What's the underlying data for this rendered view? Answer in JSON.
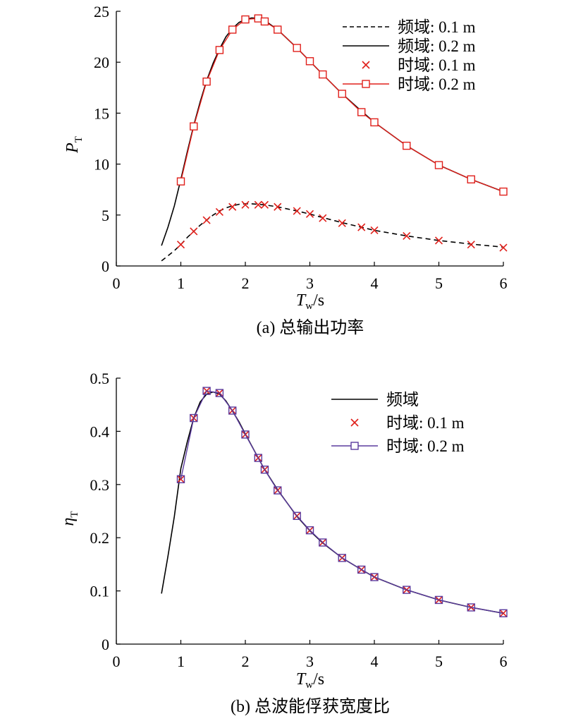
{
  "chart_data": [
    {
      "type": "line",
      "caption": "(a) 总输出功率",
      "ylabel": "P",
      "ylabel_sub": "T",
      "xlabel": "T",
      "xlabel_sub": "w",
      "xlabel_unit": "/s",
      "xlim": [
        0,
        6
      ],
      "ylim": [
        0,
        25
      ],
      "xticks": [
        0,
        1,
        2,
        3,
        4,
        5,
        6
      ],
      "yticks": [
        0,
        5,
        10,
        15,
        20,
        25
      ],
      "grid": false,
      "legend_position": "top-right",
      "colors": {
        "black": "#000000",
        "red": "#e0201b"
      },
      "series": [
        {
          "name": "频域: 0.1 m",
          "style": "dashed-line",
          "color": "#000000",
          "x": [
            0.7,
            0.8,
            0.9,
            1.0,
            1.1,
            1.2,
            1.3,
            1.4,
            1.5,
            1.6,
            1.7,
            1.8,
            1.9,
            2.0,
            2.1,
            2.2,
            2.3,
            2.5,
            2.8,
            3.0,
            3.2,
            3.5,
            3.8,
            4.0,
            4.5,
            5.0,
            5.5,
            6.0
          ],
          "y": [
            0.5,
            1.0,
            1.5,
            2.1,
            2.8,
            3.4,
            4.0,
            4.5,
            5.0,
            5.4,
            5.7,
            5.9,
            6.05,
            6.1,
            6.1,
            6.05,
            6.0,
            5.8,
            5.4,
            5.1,
            4.75,
            4.25,
            3.8,
            3.5,
            2.95,
            2.5,
            2.15,
            1.85
          ]
        },
        {
          "name": "频域: 0.2 m",
          "style": "solid-line",
          "color": "#000000",
          "x": [
            0.7,
            0.8,
            0.9,
            1.0,
            1.1,
            1.2,
            1.3,
            1.4,
            1.5,
            1.6,
            1.7,
            1.8,
            1.9,
            2.0,
            2.1,
            2.2,
            2.3,
            2.5,
            2.8,
            3.0,
            3.2,
            3.5,
            3.8,
            4.0,
            4.5,
            5.0,
            5.5,
            6.0
          ],
          "y": [
            2.0,
            3.8,
            5.9,
            8.5,
            11.2,
            13.8,
            16.1,
            18.2,
            19.9,
            21.3,
            22.5,
            23.3,
            23.9,
            24.2,
            24.35,
            24.3,
            24.1,
            23.2,
            21.4,
            20.1,
            18.8,
            16.9,
            15.2,
            14.1,
            11.8,
            9.9,
            8.5,
            7.3
          ]
        },
        {
          "name": "时域: 0.1 m",
          "style": "x-markers",
          "color": "#e0201b",
          "x": [
            1.0,
            1.2,
            1.4,
            1.6,
            1.8,
            2.0,
            2.2,
            2.3,
            2.5,
            2.8,
            3.0,
            3.2,
            3.5,
            3.8,
            4.0,
            4.5,
            5.0,
            5.5,
            6.0
          ],
          "y": [
            2.1,
            3.4,
            4.5,
            5.3,
            5.8,
            6.0,
            6.0,
            6.0,
            5.8,
            5.4,
            5.1,
            4.7,
            4.2,
            3.8,
            3.5,
            2.95,
            2.5,
            2.1,
            1.8
          ]
        },
        {
          "name": "时域: 0.2 m",
          "style": "line-square-markers",
          "color": "#e0201b",
          "x": [
            1.0,
            1.2,
            1.4,
            1.6,
            1.8,
            2.0,
            2.2,
            2.3,
            2.5,
            2.8,
            3.0,
            3.2,
            3.5,
            3.8,
            4.0,
            4.5,
            5.0,
            5.5,
            6.0
          ],
          "y": [
            8.3,
            13.7,
            18.1,
            21.2,
            23.2,
            24.2,
            24.3,
            24.0,
            23.2,
            21.4,
            20.1,
            18.8,
            16.9,
            15.1,
            14.1,
            11.8,
            9.9,
            8.5,
            7.3
          ]
        }
      ]
    },
    {
      "type": "line",
      "caption": "(b) 总波能俘获宽度比",
      "ylabel": "η",
      "ylabel_sub": "T",
      "xlabel": "T",
      "xlabel_sub": "w",
      "xlabel_unit": "/s",
      "xlim": [
        0,
        6
      ],
      "ylim": [
        0,
        0.5
      ],
      "xticks": [
        0,
        1,
        2,
        3,
        4,
        5,
        6
      ],
      "yticks": [
        0,
        0.1,
        0.2,
        0.3,
        0.4,
        0.5
      ],
      "grid": false,
      "legend_position": "top-right",
      "colors": {
        "black": "#000000",
        "red": "#e0201b",
        "purple": "#5b3b9e"
      },
      "series": [
        {
          "name": "频域",
          "style": "solid-line",
          "color": "#000000",
          "x": [
            0.7,
            0.8,
            0.9,
            1.0,
            1.1,
            1.2,
            1.3,
            1.4,
            1.5,
            1.6,
            1.7,
            1.8,
            1.9,
            2.0,
            2.2,
            2.3,
            2.5,
            2.8,
            3.0,
            3.2,
            3.5,
            3.8,
            4.0,
            4.5,
            5.0,
            5.5,
            6.0
          ],
          "y": [
            0.095,
            0.165,
            0.24,
            0.33,
            0.38,
            0.425,
            0.455,
            0.47,
            0.474,
            0.47,
            0.457,
            0.438,
            0.418,
            0.395,
            0.35,
            0.328,
            0.29,
            0.24,
            0.213,
            0.19,
            0.162,
            0.14,
            0.126,
            0.102,
            0.083,
            0.069,
            0.058
          ]
        },
        {
          "name": "时域: 0.1 m",
          "style": "x-markers",
          "color": "#e0201b",
          "x": [
            1.0,
            1.2,
            1.4,
            1.6,
            1.8,
            2.0,
            2.2,
            2.3,
            2.5,
            2.8,
            3.0,
            3.2,
            3.5,
            3.8,
            4.0,
            4.5,
            5.0,
            5.5,
            6.0
          ],
          "y": [
            0.31,
            0.425,
            0.476,
            0.472,
            0.439,
            0.394,
            0.35,
            0.328,
            0.289,
            0.241,
            0.214,
            0.191,
            0.162,
            0.14,
            0.126,
            0.102,
            0.083,
            0.069,
            0.058
          ]
        },
        {
          "name": "时域: 0.2 m",
          "style": "line-square-markers",
          "color": "#5b3b9e",
          "x": [
            1.0,
            1.2,
            1.4,
            1.6,
            1.8,
            2.0,
            2.2,
            2.3,
            2.5,
            2.8,
            3.0,
            3.2,
            3.5,
            3.8,
            4.0,
            4.5,
            5.0,
            5.5,
            6.0
          ],
          "y": [
            0.31,
            0.425,
            0.476,
            0.472,
            0.439,
            0.394,
            0.35,
            0.328,
            0.289,
            0.241,
            0.214,
            0.191,
            0.162,
            0.14,
            0.126,
            0.102,
            0.083,
            0.069,
            0.058
          ]
        }
      ]
    }
  ]
}
